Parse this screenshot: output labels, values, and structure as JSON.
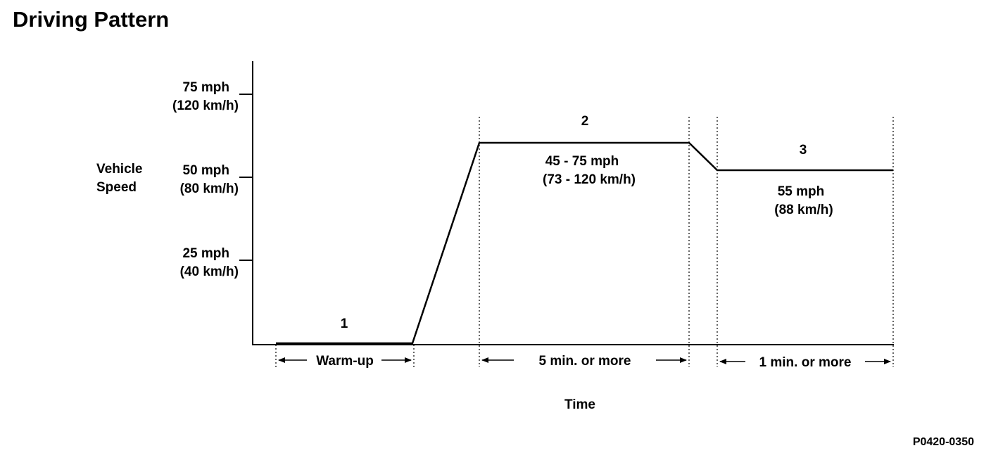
{
  "title": "Driving Pattern",
  "code": "P0420-0350",
  "axes": {
    "y_label_line1": "Vehicle",
    "y_label_line2": "Speed",
    "x_label": "Time",
    "ticks": [
      {
        "mph": "75 mph",
        "kmh": "(120 km/h)"
      },
      {
        "mph": "50 mph",
        "kmh": "(80 km/h)"
      },
      {
        "mph": "25 mph",
        "kmh": "(40 km/h)"
      }
    ]
  },
  "phases": [
    {
      "number": "1",
      "duration": "Warm-up"
    },
    {
      "number": "2",
      "speed": "45 - 75 mph",
      "speed_kmh": "(73 - 120 km/h)",
      "duration": "5 min. or  more"
    },
    {
      "number": "3",
      "speed": "55 mph",
      "speed_kmh": "(88 km/h)",
      "duration": "1 min. or  more"
    }
  ]
}
